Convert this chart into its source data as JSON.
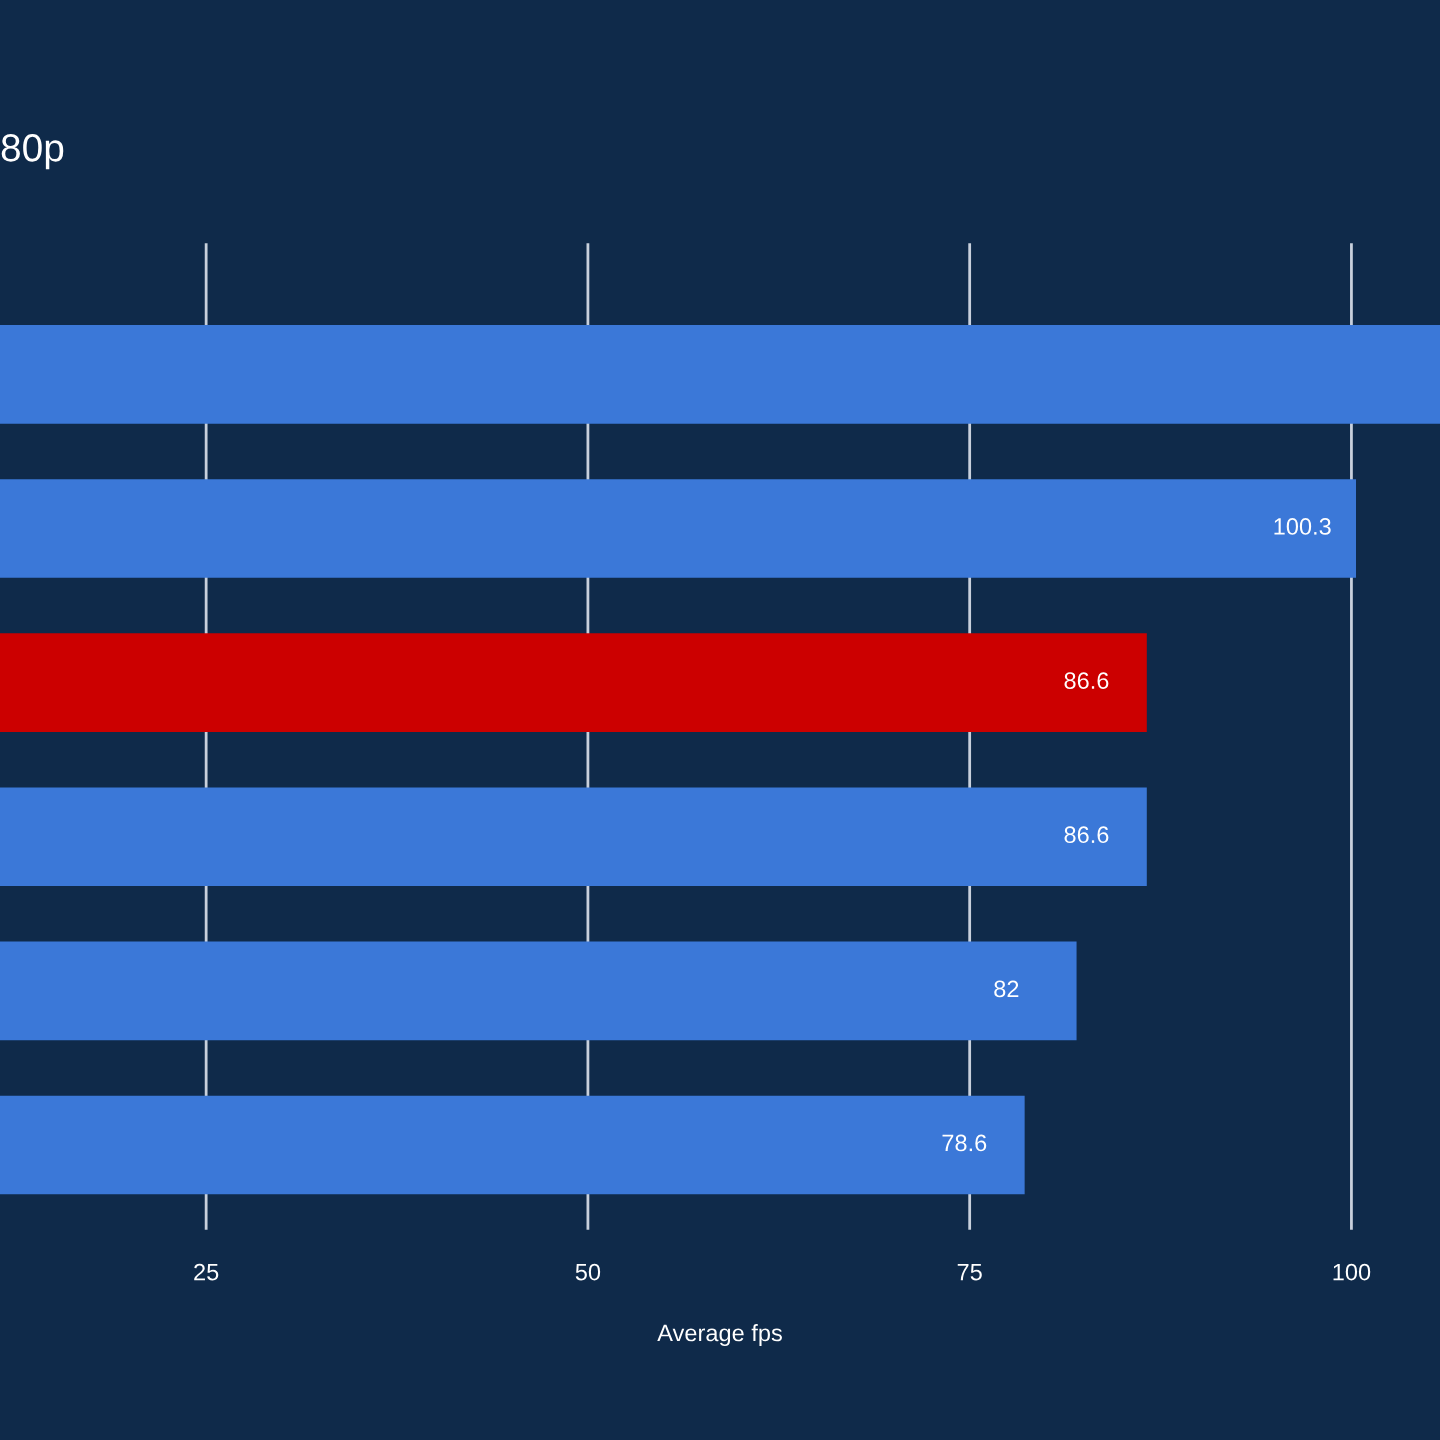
{
  "chart_data": {
    "type": "bar",
    "orientation": "horizontal",
    "title": "80p",
    "xlabel": "Average fps",
    "categories": [
      null,
      null,
      null,
      null,
      null,
      null
    ],
    "values": [
      105.8,
      100.3,
      86.6,
      86.6,
      82,
      78.6
    ],
    "colors": [
      "#3b78d8",
      "#3b78d8",
      "#cc0000",
      "#3b78d8",
      "#3b78d8",
      "#3b78d8"
    ],
    "value_labels": [
      null,
      "100.3",
      "86.6",
      "86.6",
      "82",
      "78.6"
    ],
    "xlim": [
      11.5,
      105.8
    ],
    "xticks": [
      25,
      50,
      75,
      100
    ],
    "grid": "x"
  }
}
